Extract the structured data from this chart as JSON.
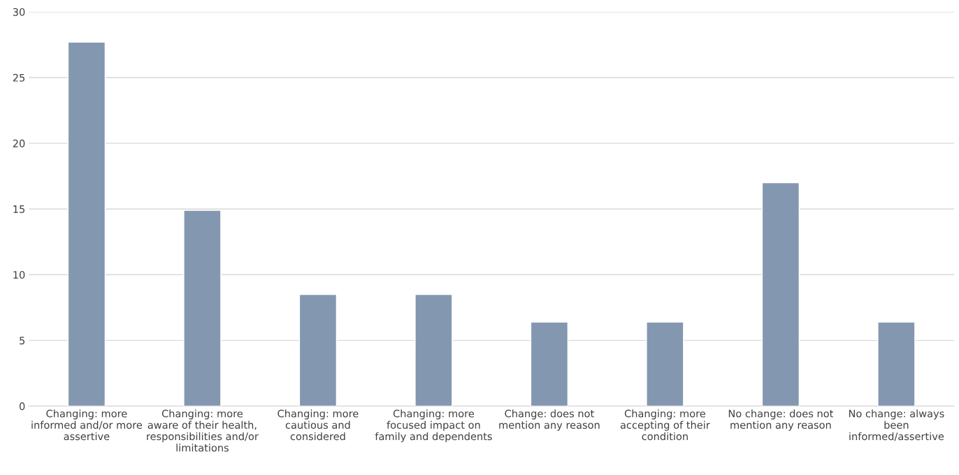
{
  "chart_data": {
    "type": "bar",
    "categories": [
      "Changing: more\ninformed and/or more\nassertive",
      "Changing: more\naware of their health,\nresponsibilities and/or\nlimitations",
      "Changing: more\ncautious and\nconsidered",
      "Changing: more\nfocused impact on\nfamily and dependents",
      "Change: does not\nmention any reason",
      "Changing: more\naccepting of their\ncondition",
      "No change: does not\nmention any reason",
      "No change: always\nbeen\ninformed/assertive"
    ],
    "values": [
      27.7,
      14.9,
      8.5,
      8.5,
      6.4,
      6.4,
      17.0,
      6.4
    ],
    "color": "#8497b0",
    "ylim": [
      0,
      30
    ],
    "yticks": [
      0,
      5,
      10,
      15,
      20,
      25,
      30
    ],
    "grid": "y"
  }
}
